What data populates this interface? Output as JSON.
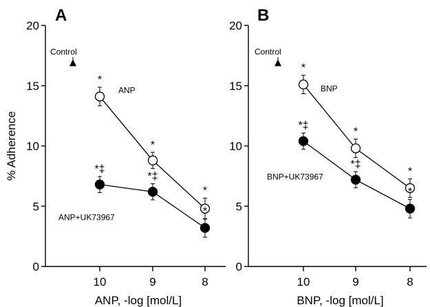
{
  "chart_data": [
    {
      "type": "line",
      "panel_label": "A",
      "xlabel": "ANP, -log [mol/L]",
      "ylabel": "% Adherence",
      "x": [
        10,
        9,
        8
      ],
      "x_tick_labels": [
        "10",
        "9",
        "8"
      ],
      "ylim": [
        0,
        20
      ],
      "y_ticks": [
        0,
        5,
        10,
        15,
        20
      ],
      "grid": false,
      "control": {
        "label": "Control",
        "value": 16.9,
        "error": 0.3
      },
      "series": [
        {
          "name": "ANP",
          "marker": "open-circle",
          "values": [
            14.1,
            8.8,
            4.8
          ],
          "errors": [
            0.4,
            0.3,
            0.5
          ],
          "annotations": [
            "*",
            "*",
            "*"
          ]
        },
        {
          "name": "ANP+UK73967",
          "marker": "filled-circle",
          "values": [
            6.8,
            6.2,
            3.2
          ],
          "errors": [
            0.3,
            0.3,
            0.4
          ],
          "annotations": [
            "*‡",
            "*‡",
            "*"
          ]
        }
      ]
    },
    {
      "type": "line",
      "panel_label": "B",
      "xlabel": "BNP, -log [mol/L]",
      "ylabel": "",
      "x": [
        10,
        9,
        8
      ],
      "x_tick_labels": [
        "10",
        "9",
        "8"
      ],
      "ylim": [
        0,
        20
      ],
      "y_ticks": [
        0,
        5,
        10,
        15,
        20
      ],
      "grid": false,
      "control": {
        "label": "Control",
        "value": 16.9,
        "error": 0.3
      },
      "series": [
        {
          "name": "BNP",
          "marker": "open-circle",
          "values": [
            15.1,
            9.8,
            6.5
          ],
          "errors": [
            0.4,
            0.4,
            0.4
          ],
          "annotations": [
            "*",
            "*",
            "*"
          ]
        },
        {
          "name": "BNP+UK73967",
          "marker": "filled-circle",
          "values": [
            10.4,
            7.2,
            4.8
          ],
          "errors": [
            0.3,
            0.3,
            0.4
          ],
          "annotations": [
            "*‡",
            "*‡",
            "*"
          ]
        }
      ]
    }
  ]
}
